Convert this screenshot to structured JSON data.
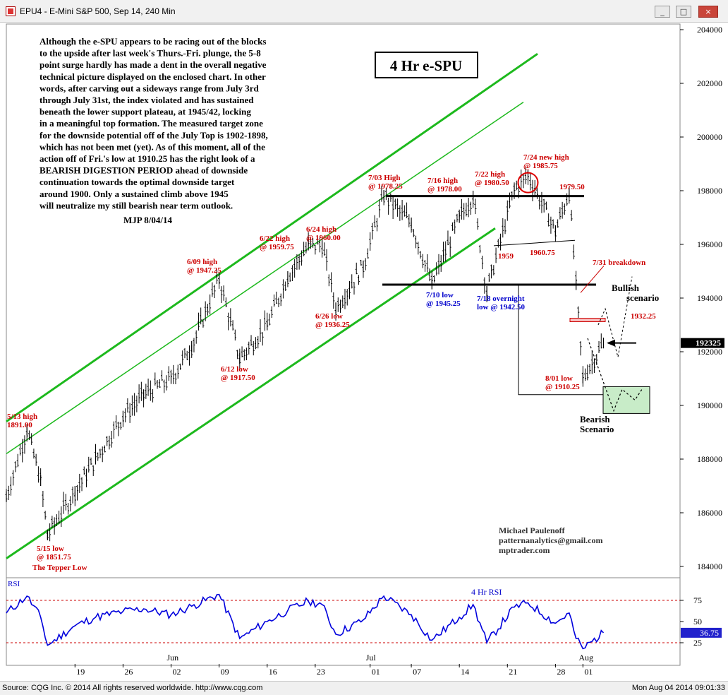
{
  "window": {
    "title": "EPU4 - E-Mini S&P 500, Sep 14, 240 Min",
    "minimize_label": "_",
    "maximize_label": "□",
    "close_label": "×"
  },
  "status": {
    "left": "Source: CQG Inc. © 2014 All rights reserved worldwide. http://www.cqg.com",
    "right": "Mon Aug 04 2014 09:01:33"
  },
  "commentary": [
    "Although the e-SPU appears to be racing out of the blocks",
    "to the upside after last week's Thurs.-Fri. plunge, the 5-8",
    "point surge hardly has made a dent in the overall negative",
    "technical picture displayed on the enclosed chart. In other",
    "words, after carving out a sideways range from July 3rd",
    "through July 31st, the index violated and has sustained",
    "beneath the lower support plateau, at 1945/42, locking",
    "in a meaningful top formation. The measured target zone",
    "for the downside potential off of the July Top is 1902-1898,",
    "which has not been met (yet). As of this moment, all of the",
    "action off of Fri.'s low at 1910.25 has the right look of a",
    "BEARISH DIGESTION PERIOD ahead of downside",
    "continuation towards the optimal downside target",
    "around 1900. Only a sustained climb above 1945",
    "will neutralize my still bearish near term outlook."
  ],
  "signature": "MJP 8/04/14",
  "credits": [
    "Michael Paulenoff",
    "patternanalytics@gmail.com",
    "mptrader.com"
  ],
  "colors": {
    "price_bars": "#000000",
    "channel": "#1db91d",
    "annotation_red": "#cc0000",
    "annotation_blue": "#0000cc",
    "rsi_line": "#0000dd",
    "scenario_box": "#c8ecc8"
  },
  "chart_data": [
    {
      "type": "line",
      "title": "4 Hr e-SPU",
      "ylim": [
        1830,
        2050
      ],
      "y_ticks": [
        1840,
        1860,
        1880,
        1900,
        1920,
        1940,
        1960,
        1980,
        2000,
        2020,
        2040
      ],
      "y_tick_labels": [
        "184000",
        "186000",
        "188000",
        "190000",
        "192000",
        "194000",
        "196000",
        "198000",
        "200000",
        "202000",
        "204000"
      ],
      "x_labels": [
        "19",
        "26",
        "02",
        "09",
        "16",
        "23",
        "01",
        "07",
        "14",
        "21",
        "28",
        "01"
      ],
      "month_labels": [
        "Jun",
        "Jul",
        "Aug"
      ],
      "last_price_label": "192325",
      "series": [
        {
          "x": [
            "05-09",
            "05-12",
            "05-14",
            "05-15",
            "05-19",
            "05-22",
            "05-26",
            "05-29",
            "06-02",
            "06-05",
            "06-09",
            "06-12",
            "06-16",
            "06-19",
            "06-22",
            "06-24",
            "06-26",
            "06-30",
            "07-03",
            "07-07",
            "07-10",
            "07-14",
            "07-16",
            "07-18",
            "07-22",
            "07-24",
            "07-28",
            "07-30",
            "07-31",
            "08-01",
            "08-04"
          ],
          "values": [
            1866,
            1891,
            1872,
            1851.75,
            1868,
            1880,
            1896,
            1904,
            1910,
            1922,
            1947.25,
            1917.5,
            1930,
            1948,
            1959.75,
            1960,
            1936.25,
            1952,
            1978.25,
            1968,
            1945.25,
            1970,
            1978,
            1942.5,
            1980.5,
            1985.75,
            1965,
            1979.5,
            1945,
            1910.25,
            1923.25
          ]
        }
      ],
      "annotations": [
        {
          "text": "5/13 high",
          "color": "red"
        },
        {
          "text": "1891.00",
          "color": "red"
        },
        {
          "text": "5/15 low",
          "color": "red"
        },
        {
          "text": "@ 1851.75",
          "color": "red"
        },
        {
          "text": "The Tepper Low",
          "color": "red"
        },
        {
          "text": "6/09 high",
          "color": "red"
        },
        {
          "text": "@ 1947.25",
          "color": "red"
        },
        {
          "text": "6/12 low",
          "color": "red"
        },
        {
          "text": "@ 1917.50",
          "color": "red"
        },
        {
          "text": "6/22 high",
          "color": "red"
        },
        {
          "text": "@ 1959.75",
          "color": "red"
        },
        {
          "text": "6/24 high",
          "color": "red"
        },
        {
          "text": "@ 1960.00",
          "color": "red"
        },
        {
          "text": "6/26 low",
          "color": "red"
        },
        {
          "text": "@ 1936.25",
          "color": "red"
        },
        {
          "text": "7/03 High",
          "color": "red"
        },
        {
          "text": "@ 1978.25",
          "color": "red"
        },
        {
          "text": "7/16 high",
          "color": "red"
        },
        {
          "text": "@ 1978.00",
          "color": "red"
        },
        {
          "text": "7/22 high",
          "color": "red"
        },
        {
          "text": "@ 1980.50",
          "color": "red"
        },
        {
          "text": "7/24 new high",
          "color": "red"
        },
        {
          "text": "@ 1985.75",
          "color": "red"
        },
        {
          "text": "1979.50",
          "color": "red"
        },
        {
          "text": "1959",
          "color": "red"
        },
        {
          "text": "1960.75",
          "color": "red"
        },
        {
          "text": "7/31 breakdown",
          "color": "red"
        },
        {
          "text": "7/10 low",
          "color": "blue"
        },
        {
          "text": "@ 1945.25",
          "color": "blue"
        },
        {
          "text": "7/18 overnight",
          "color": "blue"
        },
        {
          "text": "low @ 1942.50",
          "color": "blue"
        },
        {
          "text": "8/01 low",
          "color": "red"
        },
        {
          "text": "@ 1910.25",
          "color": "red"
        },
        {
          "text": "1932.25",
          "color": "red"
        },
        {
          "text": "Bullish",
          "color": "black"
        },
        {
          "text": "scenario",
          "color": "black"
        },
        {
          "text": "Bearish",
          "color": "black"
        },
        {
          "text": "Scenario",
          "color": "black"
        }
      ],
      "levels": [
        {
          "name": "upper plateau",
          "value": 1978
        },
        {
          "name": "lower support plateau",
          "value": 1945
        }
      ]
    },
    {
      "type": "line",
      "title": "4 Hr RSI",
      "panel_label": "RSI",
      "ylim": [
        0,
        100
      ],
      "y_ticks": [
        25,
        50,
        75
      ],
      "y_tick_labels": [
        "25",
        "50",
        "75"
      ],
      "reference_lines": [
        25,
        75
      ],
      "last_value_label": "36.75",
      "series": [
        {
          "x": [
            "05-09",
            "05-12",
            "05-14",
            "05-15",
            "05-19",
            "05-22",
            "05-26",
            "05-29",
            "06-02",
            "06-05",
            "06-09",
            "06-12",
            "06-16",
            "06-19",
            "06-22",
            "06-24",
            "06-26",
            "06-30",
            "07-03",
            "07-07",
            "07-10",
            "07-14",
            "07-16",
            "07-18",
            "07-22",
            "07-24",
            "07-28",
            "07-30",
            "07-31",
            "08-01",
            "08-04"
          ],
          "values": [
            60,
            80,
            55,
            22,
            45,
            55,
            62,
            65,
            58,
            68,
            82,
            30,
            50,
            63,
            74,
            70,
            35,
            52,
            80,
            58,
            28,
            55,
            70,
            25,
            67,
            72,
            48,
            60,
            30,
            18,
            36.75
          ]
        }
      ]
    }
  ]
}
